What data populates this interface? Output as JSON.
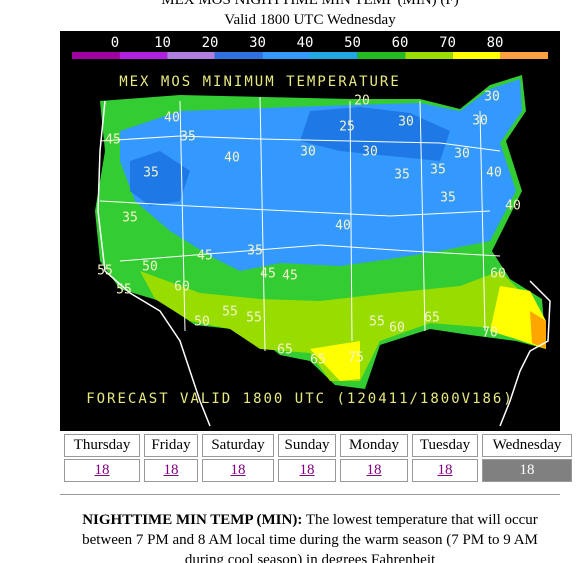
{
  "header": {
    "title": "MEX MOS NIGHTTIME MIN TEMP (MIN) (F)",
    "subtitle": "Valid 1800 UTC Wednesday"
  },
  "map": {
    "title": "MEX MOS MINIMUM TEMPERATURE",
    "footer": "FORECAST VALID 1800 UTC (120411/1800V186)",
    "legend": [
      "0",
      "10",
      "20",
      "30",
      "40",
      "50",
      "60",
      "70",
      "80"
    ],
    "labels": [
      "40",
      "35",
      "45",
      "40",
      "35",
      "30",
      "20",
      "30",
      "30",
      "25",
      "30",
      "30",
      "30",
      "35",
      "35",
      "40",
      "35",
      "40",
      "35",
      "55",
      "50",
      "35",
      "45",
      "55",
      "45",
      "45",
      "60",
      "50",
      "55",
      "55",
      "65",
      "65",
      "75",
      "55",
      "60",
      "65",
      "70",
      "60",
      "40"
    ]
  },
  "table": {
    "days": [
      "Thursday",
      "Friday",
      "Saturday",
      "Sunday",
      "Monday",
      "Tuesday",
      "Wednesday"
    ],
    "links": [
      "18",
      "18",
      "18",
      "18",
      "18",
      "18",
      "18"
    ]
  },
  "description": {
    "term": "NIGHTTIME MIN TEMP (MIN):",
    "text": "The lowest temperature that will occur between 7 PM and 8 AM local time during the warm season (7 PM to 9 AM during cool season) in degrees Fahrenheit"
  }
}
